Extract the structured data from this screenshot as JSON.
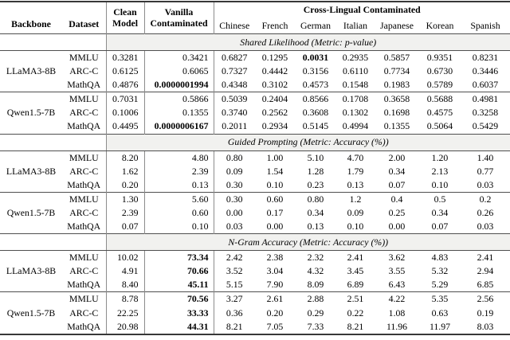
{
  "colors": {
    "banner_bg": "#f1f1ef",
    "rule": "#4f4f4f",
    "rule_heavy": "#383838",
    "vline": "#8c8c8c",
    "text": "#000000"
  },
  "table": {
    "headers": {
      "backbone": "Backbone",
      "dataset": "Dataset",
      "clean_line1": "Clean",
      "clean_line2": "Model",
      "vanilla_line1": "Vanilla",
      "vanilla_line2": "Contaminated",
      "cross_lingual": "Cross-Lingual Contaminated",
      "languages": [
        "Chinese",
        "French",
        "German",
        "Italian",
        "Japanese",
        "Korean",
        "Spanish"
      ]
    },
    "sections": [
      {
        "title": "Shared Likelihood (Metric: p-value)",
        "groups": [
          {
            "backbone": "LLaMA3-8B",
            "rows": [
              {
                "dataset": "MMLU",
                "clean": "0.3281",
                "vanilla": "0.3421",
                "bold_vanilla": false,
                "langs": [
                  "0.6827",
                  "0.1295",
                  "0.0031",
                  "0.2935",
                  "0.5857",
                  "0.9351",
                  "0.8231"
                ],
                "bold_lang_indices": [
                  2
                ]
              },
              {
                "dataset": "ARC-C",
                "clean": "0.6125",
                "vanilla": "0.6065",
                "bold_vanilla": false,
                "langs": [
                  "0.7327",
                  "0.4442",
                  "0.3156",
                  "0.6110",
                  "0.7734",
                  "0.6730",
                  "0.3446"
                ],
                "bold_lang_indices": []
              },
              {
                "dataset": "MathQA",
                "clean": "0.4876",
                "vanilla": "0.0000001994",
                "bold_vanilla": true,
                "langs": [
                  "0.4348",
                  "0.3102",
                  "0.4573",
                  "0.1548",
                  "0.1983",
                  "0.5789",
                  "0.6037"
                ],
                "bold_lang_indices": []
              }
            ]
          },
          {
            "backbone": "Qwen1.5-7B",
            "rows": [
              {
                "dataset": "MMLU",
                "clean": "0.7031",
                "vanilla": "0.5866",
                "bold_vanilla": false,
                "langs": [
                  "0.5039",
                  "0.2404",
                  "0.8566",
                  "0.1708",
                  "0.3658",
                  "0.5688",
                  "0.4981"
                ],
                "bold_lang_indices": []
              },
              {
                "dataset": "ARC-C",
                "clean": "0.1006",
                "vanilla": "0.1355",
                "bold_vanilla": false,
                "langs": [
                  "0.3740",
                  "0.2562",
                  "0.3608",
                  "0.1302",
                  "0.1698",
                  "0.4575",
                  "0.3258"
                ],
                "bold_lang_indices": []
              },
              {
                "dataset": "MathQA",
                "clean": "0.4495",
                "vanilla": "0.0000006167",
                "bold_vanilla": true,
                "langs": [
                  "0.2011",
                  "0.2934",
                  "0.5145",
                  "0.4994",
                  "0.1355",
                  "0.5064",
                  "0.5429"
                ],
                "bold_lang_indices": []
              }
            ]
          }
        ]
      },
      {
        "title": "Guided Prompting (Metric: Accuracy (%))",
        "groups": [
          {
            "backbone": "LLaMA3-8B",
            "rows": [
              {
                "dataset": "MMLU",
                "clean": "8.20",
                "vanilla": "4.80",
                "bold_vanilla": false,
                "langs": [
                  "0.80",
                  "1.00",
                  "5.10",
                  "4.70",
                  "2.00",
                  "1.20",
                  "1.40"
                ],
                "bold_lang_indices": []
              },
              {
                "dataset": "ARC-C",
                "clean": "1.62",
                "vanilla": "2.39",
                "bold_vanilla": false,
                "langs": [
                  "0.09",
                  "1.54",
                  "1.28",
                  "1.79",
                  "0.34",
                  "2.13",
                  "0.77"
                ],
                "bold_lang_indices": []
              },
              {
                "dataset": "MathQA",
                "clean": "0.20",
                "vanilla": "0.13",
                "bold_vanilla": false,
                "langs": [
                  "0.30",
                  "0.10",
                  "0.23",
                  "0.13",
                  "0.07",
                  "0.10",
                  "0.03"
                ],
                "bold_lang_indices": []
              }
            ]
          },
          {
            "backbone": "Qwen1.5-7B",
            "rows": [
              {
                "dataset": "MMLU",
                "clean": "1.30",
                "vanilla": "5.60",
                "bold_vanilla": false,
                "langs": [
                  "0.30",
                  "0.60",
                  "0.80",
                  "1.2",
                  "0.4",
                  "0.5",
                  "0.2"
                ],
                "bold_lang_indices": []
              },
              {
                "dataset": "ARC-C",
                "clean": "2.39",
                "vanilla": "0.60",
                "bold_vanilla": false,
                "langs": [
                  "0.00",
                  "0.17",
                  "0.34",
                  "0.09",
                  "0.25",
                  "0.34",
                  "0.26"
                ],
                "bold_lang_indices": []
              },
              {
                "dataset": "MathQA",
                "clean": "0.07",
                "vanilla": "0.10",
                "bold_vanilla": false,
                "langs": [
                  "0.03",
                  "0.00",
                  "0.13",
                  "0.10",
                  "0.00",
                  "0.07",
                  "0.03"
                ],
                "bold_lang_indices": []
              }
            ]
          }
        ]
      },
      {
        "title": "N-Gram Accuracy (Metric: Accuracy (%))",
        "groups": [
          {
            "backbone": "LLaMA3-8B",
            "rows": [
              {
                "dataset": "MMLU",
                "clean": "10.02",
                "vanilla": "73.34",
                "bold_vanilla": true,
                "langs": [
                  "2.42",
                  "2.38",
                  "2.32",
                  "2.41",
                  "3.62",
                  "4.83",
                  "2.41"
                ],
                "bold_lang_indices": []
              },
              {
                "dataset": "ARC-C",
                "clean": "4.91",
                "vanilla": "70.66",
                "bold_vanilla": true,
                "langs": [
                  "3.52",
                  "3.04",
                  "4.32",
                  "3.45",
                  "3.55",
                  "5.32",
                  "2.94"
                ],
                "bold_lang_indices": []
              },
              {
                "dataset": "MathQA",
                "clean": "8.40",
                "vanilla": "45.11",
                "bold_vanilla": true,
                "langs": [
                  "5.15",
                  "7.90",
                  "8.09",
                  "6.89",
                  "6.43",
                  "5.29",
                  "6.85"
                ],
                "bold_lang_indices": []
              }
            ]
          },
          {
            "backbone": "Qwen1.5-7B",
            "rows": [
              {
                "dataset": "MMLU",
                "clean": "8.78",
                "vanilla": "70.56",
                "bold_vanilla": true,
                "langs": [
                  "3.27",
                  "2.61",
                  "2.88",
                  "2.51",
                  "4.22",
                  "5.35",
                  "2.56"
                ],
                "bold_lang_indices": []
              },
              {
                "dataset": "ARC-C",
                "clean": "22.25",
                "vanilla": "33.33",
                "bold_vanilla": true,
                "langs": [
                  "0.36",
                  "0.20",
                  "0.29",
                  "0.22",
                  "1.08",
                  "0.63",
                  "0.19"
                ],
                "bold_lang_indices": []
              },
              {
                "dataset": "MathQA",
                "clean": "20.98",
                "vanilla": "44.31",
                "bold_vanilla": true,
                "langs": [
                  "8.21",
                  "7.05",
                  "7.33",
                  "8.21",
                  "11.96",
                  "11.97",
                  "8.03"
                ],
                "bold_lang_indices": []
              }
            ]
          }
        ]
      }
    ]
  }
}
